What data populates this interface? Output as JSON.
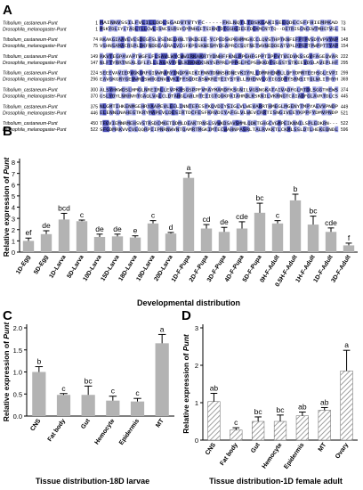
{
  "panels": {
    "a": "A",
    "b": "B",
    "c": "C",
    "d": "D"
  },
  "alignment": {
    "species": [
      "Tribolium_castaneum-Punt",
      "Drosophila_melanogaster-Punt"
    ],
    "blocks": [
      {
        "rows": [
          {
            "start": "1",
            "seq": "MAINNVSSILFVLILLDDLSGADVTVTYFC-----FKLNQTLTDSKGAKISEEQDECSFFHIEMPKAD",
            "end": "73"
          },
          {
            "start": "1",
            "seq": "MSKYDLIYLTAQLTLLCWLISNCSSRSVCPPNHGETSIKNTDTGGHGIEEFDEKMCNTTQ--DETRISCNCEWTMHGTVGL",
            "end": "74"
          }
        ]
      },
      {
        "rows": [
          {
            "start": "74",
            "seq": "RKAKGIAAVEVESDEGFSLVSENELHNLTVKDEEE-YCPEDSKPKHMMGKCCLQVSTHPTKNFEFPTPVSDYVPVYNP",
            "end": "148"
          },
          {
            "start": "75",
            "seq": "VSHNSAMACRSPLDKFNDDEASRALVCGFKPSSKWESMYDGAPRCCSQTNETWVNEDDEATVPLPPSPTPWPPTTYAP",
            "end": "154"
          }
        ]
      },
      {
        "rows": [
          {
            "start": "149",
            "seq": "RKVTEGPAVAPTWGFLFLSAVLWYCWWIRKAKRTYDNHFFKNLPPGHFGPPTIPFVTVEDVKSSGVFAGEQVAR",
            "end": "222"
          },
          {
            "start": "147",
            "seq": "NLFTYRRTNSALGFLFLLLAVAVYFWLKRKNKKSNYSPPRLPPPGLPCPSHKKDFSGSSTSTKEEVDSLAVEPLHF",
            "end": "295"
          }
        ]
      },
      {
        "rows": [
          {
            "start": "224",
            "seq": "SEEEVAVIEPVGKGRFGIVWRARYINQPVAIKIFNNTDNNSHDNEVKIYRLLDMRHENMLLQFYDMRTEEHSGLEVPI",
            "end": "299"
          },
          {
            "start": "296",
            "seq": "EAVGKGRYGEVWRGSWHGENVAVKIFFSQDEASWKRETEIYSTVLLRHENVLGYIGSDMTSRNSITQLWLITHYH",
            "end": "369"
          }
        ]
      },
      {
        "rows": [
          {
            "start": "300",
            "seq": "ALSYHKWDSLHMGLNREIRLLEVPKHSGSPPFVRAYMARDFKSGNILVGSNGKATAIVADFGLRTDLSGGTHEWS",
            "end": "374"
          },
          {
            "start": "370",
            "seq": "GSLYDYLNRHVHTGAQLVALCLDTAHGLAHLHTEIIGTQGKPAIAHRDLKSKNILVKRNGTCAIADFGLAVRTDLCS",
            "end": "445"
          }
        ]
      },
      {
        "rows": [
          {
            "start": "375",
            "seq": "NLGMTIHKENMGEHRYAAPEVLEELINNTEFESYKQVDIYSIGLVLWEVARRTHMEGLMGENYTMPYAEVVPNDP",
            "end": "449"
          },
          {
            "start": "446",
            "seq": "ELENNLNAHEGTKRYMAPEVLDESIRTDCFESFKRVDIYAFGLVLWEVCRRTISNGIVEEYKPPFYDMVPNDP",
            "end": "521"
          }
        ]
      },
      {
        "rows": [
          {
            "start": "450",
            "seq": "TFGVIEMNRMEHSVSTRSDCMKETDDMLDEAKTRNSLSVWKDSAVSMMLQDKTGHGCVGMPEIKNNILSPLEDKRN---",
            "end": "522"
          },
          {
            "start": "522",
            "seq": "SFGDMRKVVCVEQQRPIIPNRNWVNTQAMRTMGKIMTECWAHNPASRLTALRVKKTLCKMLSSLDTLHEKEQNDL",
            "end": "596"
          }
        ]
      }
    ]
  },
  "colors": {
    "bar_solid": "#b3b3b3",
    "bar_hatch_bg": "#ffffff",
    "bar_hatch_line": "#888888",
    "text": "#000000",
    "align_high": "#4a4fb8",
    "align_mid": "#8f94df",
    "align_low": "#c9cbf1"
  },
  "chart_data": [
    {
      "panel": "B",
      "type": "bar",
      "xlabel": "Developmental distribution",
      "ylabel_prefix": "Relative expression of ",
      "ylabel_gene": "Punt",
      "ylim": [
        0,
        8
      ],
      "yticks": [
        "0",
        "1",
        "2",
        "3",
        "4",
        "5",
        "6",
        "7",
        "8"
      ],
      "categories": [
        "1D-Egg",
        "5D-Egg",
        "1D-Larva",
        "5D-Larva",
        "10D-Larva",
        "15D-Larva",
        "18D-Larva",
        "19D-Larva",
        "20D-Larva",
        "1D-F-Pupa",
        "2D-F-Pupa",
        "3D-F-Pupa",
        "4D-F-Pupa",
        "5D-F-Pupa",
        "0H-F-Adult",
        "0.5H-F-Adult",
        "1H-F-Adult",
        "1D-F-Adult",
        "3D-F-Adult"
      ],
      "values": [
        1.0,
        1.6,
        2.9,
        2.75,
        1.35,
        1.4,
        1.3,
        2.55,
        1.65,
        6.6,
        2.1,
        1.8,
        2.1,
        3.5,
        2.55,
        4.6,
        2.45,
        1.8,
        0.6
      ],
      "errors": [
        0.25,
        0.3,
        0.55,
        0.1,
        0.25,
        0.2,
        0.15,
        0.25,
        0.1,
        0.45,
        0.35,
        0.4,
        0.6,
        0.85,
        0.25,
        0.55,
        0.75,
        0.35,
        0.2
      ],
      "labels": [
        "ef",
        "de",
        "bcd",
        "c",
        "de",
        "de",
        "e",
        "c",
        "d",
        "a",
        "cd",
        "de",
        "cde",
        "bc",
        "c",
        "b",
        "bc",
        "cde",
        "f"
      ],
      "hatched": [
        false,
        false,
        false,
        false,
        false,
        false,
        false,
        false,
        false,
        false,
        false,
        false,
        false,
        false,
        false,
        false,
        false,
        false,
        false
      ]
    },
    {
      "panel": "C",
      "type": "bar",
      "xlabel": "Tissue distribution-18D larvae",
      "ylabel_prefix": "Relative expression of ",
      "ylabel_gene": "Punt",
      "ylim": [
        0,
        2
      ],
      "yticks": [
        "0.0",
        "0.5",
        "1.0",
        "1.5",
        "2.0"
      ],
      "categories": [
        "CNS",
        "Fat body",
        "Gut",
        "Hemocyte",
        "Epidermis",
        "MT"
      ],
      "values": [
        1.0,
        0.48,
        0.48,
        0.35,
        0.33,
        1.65
      ],
      "errors": [
        0.12,
        0.03,
        0.2,
        0.1,
        0.07,
        0.2
      ],
      "labels": [
        "b",
        "c",
        "bc",
        "c",
        "c",
        "a"
      ],
      "hatched": [
        false,
        false,
        false,
        false,
        false,
        false
      ]
    },
    {
      "panel": "D",
      "type": "bar",
      "xlabel": "Tissue distribution-1D female adult",
      "ylabel_prefix": "Relative expression of ",
      "ylabel_gene": "Punt",
      "ylim": [
        0,
        3
      ],
      "yticks": [
        "0",
        "1",
        "2",
        "3"
      ],
      "categories": [
        "CNS",
        "Fat body",
        "Gut",
        "Hemocyte",
        "Epidermis",
        "MT",
        "Ovary"
      ],
      "values": [
        1.03,
        0.27,
        0.5,
        0.5,
        0.65,
        0.8,
        1.85
      ],
      "errors": [
        0.22,
        0.06,
        0.12,
        0.17,
        0.1,
        0.07,
        0.55
      ],
      "labels": [
        "ab",
        "c",
        "bc",
        "bc",
        "ab",
        "ab",
        "a"
      ],
      "hatched": [
        true,
        true,
        true,
        true,
        true,
        true,
        true
      ]
    }
  ]
}
